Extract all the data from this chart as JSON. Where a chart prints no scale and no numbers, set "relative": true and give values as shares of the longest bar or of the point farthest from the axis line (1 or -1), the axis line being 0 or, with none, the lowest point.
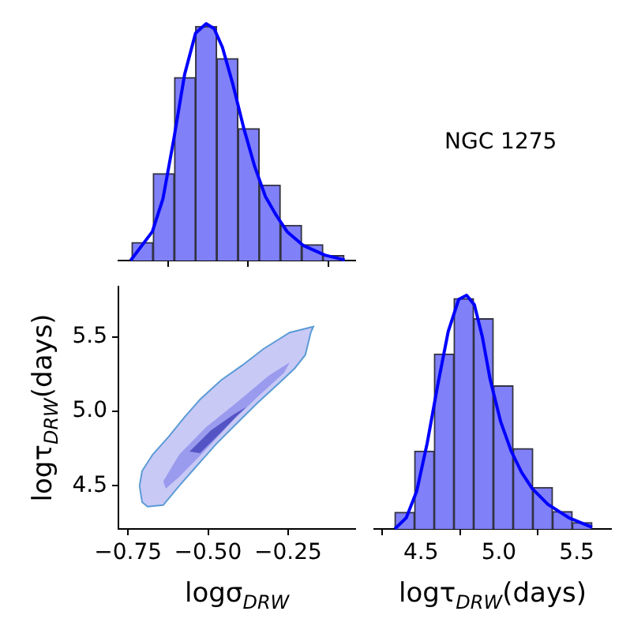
{
  "chart_data": [
    {
      "type": "histogram",
      "relative": true,
      "xlim": [
        -0.78,
        -0.04
      ],
      "xticks": [
        {
          "value": -0.75,
          "label": null
        },
        {
          "value": -0.5,
          "label": null
        },
        {
          "value": -0.25,
          "label": null
        }
      ],
      "tick_labels": false,
      "grid": false,
      "legend": false,
      "series": [
        {
          "type": "histogram",
          "color": "#8080f8",
          "bins": [
            -0.738,
            -0.672,
            -0.605,
            -0.539,
            -0.473,
            -0.406,
            -0.34,
            -0.274,
            -0.207,
            -0.141,
            -0.075
          ],
          "values": [
            0.076,
            0.367,
            0.773,
            0.989,
            0.853,
            0.557,
            0.319,
            0.149,
            0.067,
            0.021
          ]
        },
        {
          "type": "line",
          "color": "#0000ff",
          "x": [
            -0.742,
            -0.674,
            -0.641,
            -0.607,
            -0.573,
            -0.539,
            -0.506,
            -0.481,
            -0.455,
            -0.422,
            -0.388,
            -0.354,
            -0.321,
            -0.287,
            -0.253,
            -0.203,
            -0.135,
            -0.073
          ],
          "values": [
            0,
            0.122,
            0.26,
            0.512,
            0.787,
            0.96,
            1,
            0.979,
            0.9,
            0.742,
            0.557,
            0.396,
            0.271,
            0.191,
            0.122,
            0.064,
            0.023,
            0.002
          ]
        }
      ]
    },
    {
      "type": "other",
      "annotations": [
        "NGC 1275"
      ]
    },
    {
      "type": "area",
      "xlim": [
        -0.78,
        -0.04
      ],
      "ylim": [
        4.21,
        5.84
      ],
      "xticks": [
        {
          "value": -0.75,
          "label": "−0.75"
        },
        {
          "value": -0.5,
          "label": "−0.50"
        },
        {
          "value": -0.25,
          "label": "−0.25"
        }
      ],
      "yticks": [
        4.5,
        {
          "value": 5.0,
          "label": "5.0"
        },
        5.5
      ],
      "xlabel": "logσ$_{DRW}$",
      "ylabel": "logτ$_{DRW}$(days)",
      "grid": false,
      "legend": false,
      "series": [
        {
          "type": "area",
          "color": "#c9c9f6",
          "x": [
            -0.714,
            -0.706,
            -0.673,
            -0.623,
            -0.574,
            -0.525,
            -0.459,
            -0.393,
            -0.327,
            -0.245,
            -0.171,
            -0.179,
            -0.196,
            -0.229,
            -0.278,
            -0.344,
            -0.41,
            -0.475,
            -0.541,
            -0.59,
            -0.64,
            -0.689,
            -0.706,
            -0.714
          ],
          "values": [
            4.5,
            4.6,
            4.71,
            4.83,
            4.96,
            5.08,
            5.21,
            5.31,
            5.42,
            5.53,
            5.57,
            5.53,
            5.38,
            5.29,
            5.19,
            5.06,
            4.92,
            4.78,
            4.62,
            4.5,
            4.37,
            4.36,
            4.39,
            4.5
          ]
        },
        {
          "type": "area",
          "color": "#9a9aee",
          "x": [
            -0.64,
            -0.59,
            -0.508,
            -0.41,
            -0.311,
            -0.245,
            -0.262,
            -0.344,
            -0.426,
            -0.508,
            -0.59,
            -0.632,
            -0.64
          ],
          "values": [
            4.53,
            4.71,
            4.89,
            5.06,
            5.24,
            5.33,
            5.26,
            5.1,
            4.93,
            4.74,
            4.56,
            4.48,
            4.53
          ]
        },
        {
          "type": "area",
          "color": "#5454c4",
          "x": [
            -0.558,
            -0.492,
            -0.42,
            -0.38,
            -0.41,
            -0.459,
            -0.525,
            -0.558
          ],
          "values": [
            4.73,
            4.87,
            4.98,
            5.03,
            4.97,
            4.86,
            4.72,
            4.73
          ]
        }
      ]
    },
    {
      "type": "histogram",
      "relative": true,
      "xlim": [
        4.2,
        5.72
      ],
      "xticks": [
        4.5,
        {
          "value": 5.0,
          "label": "5.0"
        },
        5.5
      ],
      "xlabel": "logτ$_{DRW}$(days)",
      "tick_labels": "x",
      "grid": false,
      "legend": false,
      "series": [
        {
          "type": "histogram",
          "color": "#8080f8",
          "bins": [
            4.332,
            4.459,
            4.585,
            4.712,
            4.838,
            4.965,
            5.092,
            5.218,
            5.345,
            5.471,
            5.598
          ],
          "values": [
            0.071,
            0.333,
            0.749,
            0.986,
            0.9,
            0.613,
            0.344,
            0.178,
            0.075,
            0.027
          ]
        },
        {
          "type": "line",
          "color": "#0000ff",
          "x": [
            4.332,
            4.406,
            4.473,
            4.54,
            4.608,
            4.675,
            4.742,
            4.793,
            4.843,
            4.894,
            4.944,
            5.012,
            5.079,
            5.146,
            5.214,
            5.315,
            5.449,
            5.598
          ],
          "values": [
            0,
            0.048,
            0.162,
            0.367,
            0.617,
            0.845,
            0.982,
            1,
            0.959,
            0.822,
            0.64,
            0.458,
            0.333,
            0.242,
            0.173,
            0.105,
            0.048,
            0.007
          ]
        }
      ]
    }
  ]
}
